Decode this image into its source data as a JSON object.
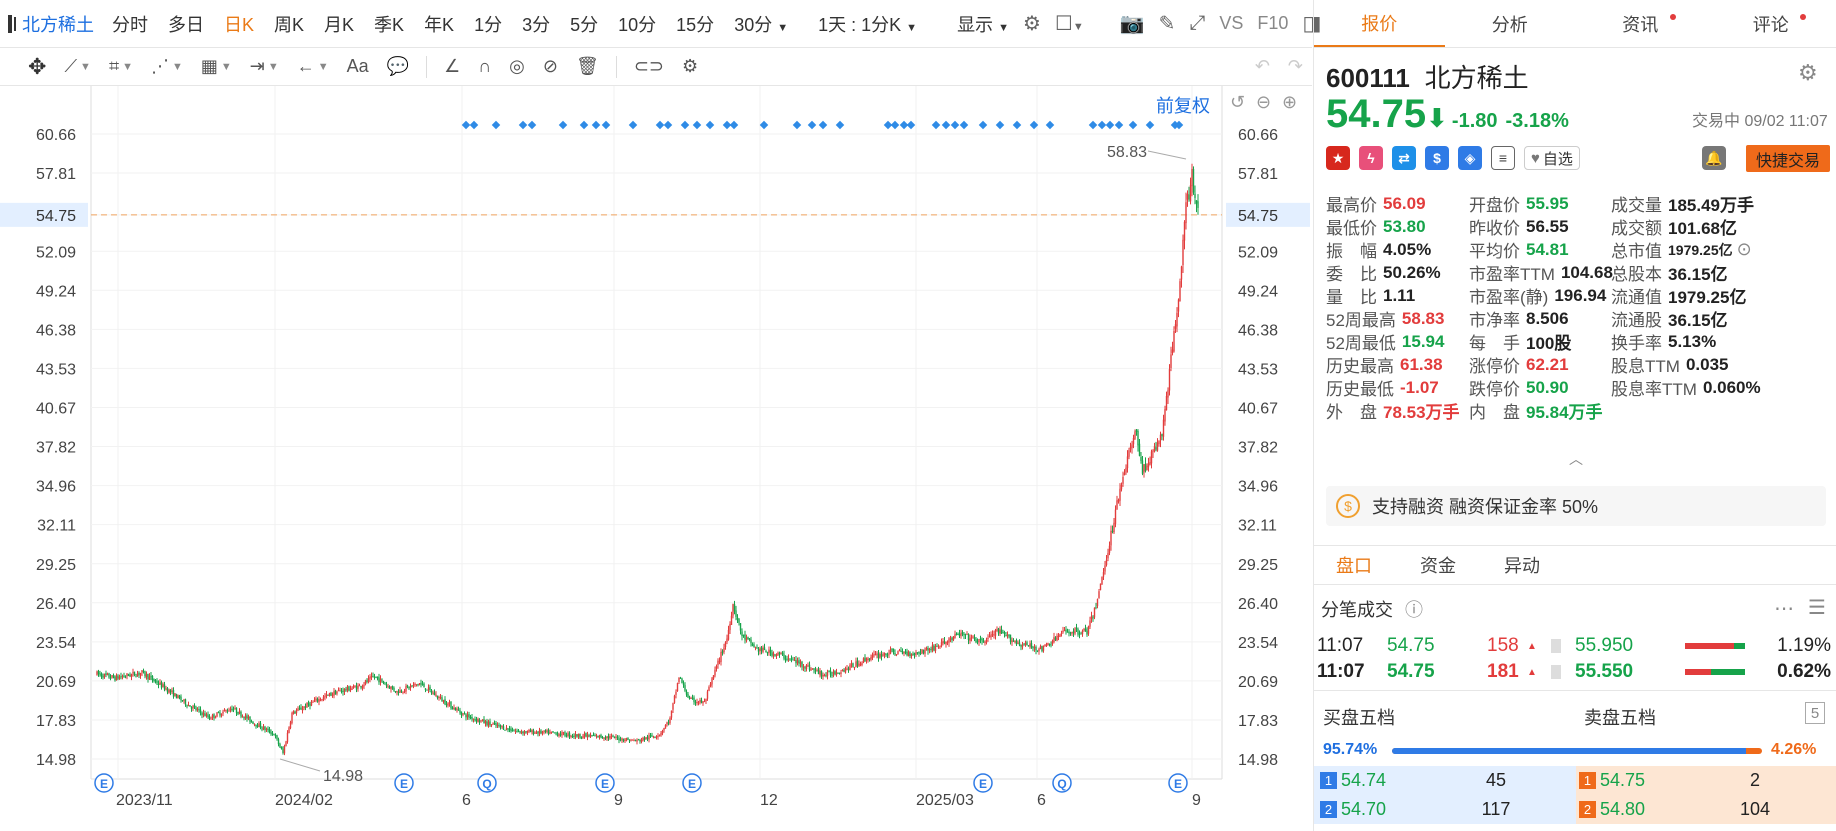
{
  "toolbar": {
    "stock_name": "北方稀土",
    "periods": [
      {
        "label": "分时",
        "active": false
      },
      {
        "label": "多日",
        "active": false
      },
      {
        "label": "日K",
        "active": true
      },
      {
        "label": "周K",
        "active": false
      },
      {
        "label": "月K",
        "active": false
      },
      {
        "label": "季K",
        "active": false
      },
      {
        "label": "年K",
        "active": false
      },
      {
        "label": "1分",
        "active": false
      },
      {
        "label": "3分",
        "active": false
      },
      {
        "label": "5分",
        "active": false
      },
      {
        "label": "10分",
        "active": false
      },
      {
        "label": "15分",
        "active": false
      }
    ],
    "dd_30min": "30分",
    "dd_range": "1天 : 1分K",
    "dd_display": "显示",
    "vs_label": "VS",
    "f10_label": "F10"
  },
  "drawing_tools": {
    "text_tool": "Aa",
    "icons": [
      "move-icon",
      "line-icon",
      "segment-icon",
      "polyline-icon",
      "fib-icon",
      "measure-icon",
      "arrow-icon",
      "text-icon",
      "comment-icon",
      "pen-icon",
      "magnet-icon",
      "eye-icon",
      "hide-icon",
      "trash-icon",
      "link-icon",
      "settings-icon"
    ]
  },
  "chart_data": {
    "type": "candlestick",
    "adjust_label": "前复权",
    "y_ticks": [
      60.66,
      57.81,
      54.75,
      52.09,
      49.24,
      46.38,
      43.53,
      40.67,
      37.82,
      34.96,
      32.11,
      29.25,
      26.4,
      23.54,
      20.69,
      17.83,
      14.98
    ],
    "y_tick_labels": [
      "60.66",
      "57.81",
      "54.75",
      "52.09",
      "49.24",
      "46.38",
      "43.53",
      "40.67",
      "37.82",
      "34.96",
      "32.11",
      "29.25",
      "26.40",
      "23.54",
      "20.69",
      "17.83",
      "14.98"
    ],
    "ylim": [
      13.5,
      62.2
    ],
    "current_price": 54.75,
    "current_price_label": "54.75",
    "x_tick_labels": [
      "2023/11",
      "2024/02",
      "6",
      "9",
      "12",
      "2025/03",
      "6",
      "9"
    ],
    "high_marker": {
      "value": 58.83,
      "label": "58.83"
    },
    "low_marker": {
      "value": 14.98,
      "label": "14.98"
    },
    "event_markers": [
      "E",
      "E",
      "Q",
      "E",
      "E",
      "E",
      "Q",
      "E"
    ],
    "trend_keypoints": [
      [
        0,
        21.2
      ],
      [
        12,
        20.9
      ],
      [
        30,
        21.3
      ],
      [
        45,
        20.2
      ],
      [
        60,
        19.0
      ],
      [
        75,
        18.0
      ],
      [
        90,
        18.7
      ],
      [
        105,
        17.6
      ],
      [
        118,
        16.8
      ],
      [
        124,
        15.4
      ],
      [
        130,
        18.3
      ],
      [
        145,
        19.2
      ],
      [
        160,
        19.9
      ],
      [
        175,
        20.3
      ],
      [
        185,
        21.0
      ],
      [
        200,
        19.9
      ],
      [
        215,
        20.5
      ],
      [
        230,
        19.3
      ],
      [
        245,
        18.2
      ],
      [
        260,
        17.6
      ],
      [
        280,
        17.0
      ],
      [
        300,
        16.9
      ],
      [
        320,
        16.7
      ],
      [
        340,
        16.6
      ],
      [
        360,
        16.3
      ],
      [
        375,
        16.8
      ],
      [
        382,
        17.9
      ],
      [
        388,
        21.0
      ],
      [
        395,
        19.3
      ],
      [
        405,
        19.1
      ],
      [
        412,
        21.4
      ],
      [
        420,
        23.8
      ],
      [
        424,
        26.3
      ],
      [
        430,
        24.0
      ],
      [
        440,
        23.0
      ],
      [
        455,
        22.6
      ],
      [
        470,
        21.9
      ],
      [
        485,
        21.1
      ],
      [
        500,
        21.6
      ],
      [
        515,
        22.4
      ],
      [
        530,
        22.8
      ],
      [
        545,
        22.7
      ],
      [
        560,
        23.2
      ],
      [
        575,
        24.1
      ],
      [
        590,
        23.5
      ],
      [
        600,
        24.3
      ],
      [
        615,
        23.4
      ],
      [
        630,
        23.0
      ],
      [
        645,
        24.3
      ],
      [
        660,
        24.3
      ],
      [
        665,
        25.8
      ],
      [
        670,
        28.2
      ],
      [
        675,
        30.8
      ],
      [
        682,
        34.8
      ],
      [
        688,
        37.4
      ],
      [
        693,
        38.9
      ],
      [
        697,
        36.0
      ],
      [
        703,
        37.1
      ],
      [
        710,
        38.7
      ],
      [
        714,
        42.3
      ],
      [
        718,
        46.0
      ],
      [
        722,
        50.0
      ],
      [
        726,
        55.2
      ],
      [
        730,
        57.6
      ],
      [
        734,
        54.75
      ]
    ]
  },
  "quote": {
    "tabs": [
      "报价",
      "分析",
      "资讯",
      "评论"
    ],
    "code": "600111",
    "name": "北方稀土",
    "price": "54.75",
    "arrow": "⬇",
    "change": "-1.80",
    "change_pct": "-3.18%",
    "trade_status": "交易中 09/02 11:07",
    "fav_label": "自选",
    "quick_trade": "快捷交易",
    "stats": [
      [
        {
          "l": "最高价",
          "v": "56.09",
          "c": "red"
        },
        {
          "l": "开盘价",
          "v": "55.95",
          "c": "green"
        },
        {
          "l": "成交量",
          "v": "185.49万手",
          "c": "dark"
        }
      ],
      [
        {
          "l": "最低价",
          "v": "53.80",
          "c": "green"
        },
        {
          "l": "昨收价",
          "v": "56.55",
          "c": "dark"
        },
        {
          "l": "成交额",
          "v": "101.68亿",
          "c": "dark"
        }
      ],
      [
        {
          "l": "振　幅",
          "v": "4.05%",
          "c": "dark"
        },
        {
          "l": "平均价",
          "v": "54.81",
          "c": "green"
        },
        {
          "l": "总市值",
          "v": "1979.25亿",
          "c": "dark"
        }
      ],
      [
        {
          "l": "委　比",
          "v": "50.26%",
          "c": "dark"
        },
        {
          "l": "市盈率TTM",
          "v": "104.68",
          "c": "dark"
        },
        {
          "l": "总股本",
          "v": "36.15亿",
          "c": "dark"
        }
      ],
      [
        {
          "l": "量　比",
          "v": "1.11",
          "c": "dark"
        },
        {
          "l": "市盈率(静)",
          "v": "196.94",
          "c": "dark"
        },
        {
          "l": "流通值",
          "v": "1979.25亿",
          "c": "dark"
        }
      ],
      [
        {
          "l": "52周最高",
          "v": "58.83",
          "c": "red"
        },
        {
          "l": "市净率",
          "v": "8.506",
          "c": "dark"
        },
        {
          "l": "流通股",
          "v": "36.15亿",
          "c": "dark"
        }
      ],
      [
        {
          "l": "52周最低",
          "v": "15.94",
          "c": "green"
        },
        {
          "l": "每　手",
          "v": "100股",
          "c": "dark"
        },
        {
          "l": "换手率",
          "v": "5.13%",
          "c": "dark"
        }
      ],
      [
        {
          "l": "历史最高",
          "v": "61.38",
          "c": "red"
        },
        {
          "l": "涨停价",
          "v": "62.21",
          "c": "red"
        },
        {
          "l": "股息TTM",
          "v": "0.035",
          "c": "dark"
        }
      ],
      [
        {
          "l": "历史最低",
          "v": "-1.07",
          "c": "red"
        },
        {
          "l": "跌停价",
          "v": "50.90",
          "c": "green"
        },
        {
          "l": "股息率TTM",
          "v": "0.060%",
          "c": "dark"
        }
      ],
      [
        {
          "l": "外　盘",
          "v": "78.53万手",
          "c": "red"
        },
        {
          "l": "内　盘",
          "v": "95.84万手",
          "c": "green"
        }
      ]
    ],
    "margin_text": "支持融资 融资保证金率 50%",
    "sub_tabs": [
      "盘口",
      "资金",
      "异动"
    ],
    "ticks_title": "分笔成交",
    "ticks": [
      {
        "time": "11:07",
        "price": "54.75",
        "vol": "158",
        "px2": "55.950",
        "pct": "1.19%",
        "bold": false,
        "bar": 0.82
      },
      {
        "time": "11:07",
        "price": "54.75",
        "vol": "181",
        "px2": "55.550",
        "pct": "0.62%",
        "bold": true,
        "bar": 0.43
      }
    ],
    "buy_title": "买盘五档",
    "sell_title": "卖盘五档",
    "depth_btn": "5",
    "buy_pct": "95.74%",
    "sell_pct": "4.26%",
    "buy_ratio": 0.9574,
    "book": [
      {
        "bi": "1",
        "bp": "54.74",
        "bv": "45",
        "si": "1",
        "sp": "54.75",
        "sv": "2"
      },
      {
        "bi": "2",
        "bp": "54.70",
        "bv": "117",
        "si": "2",
        "sp": "54.80",
        "sv": "104"
      }
    ]
  }
}
